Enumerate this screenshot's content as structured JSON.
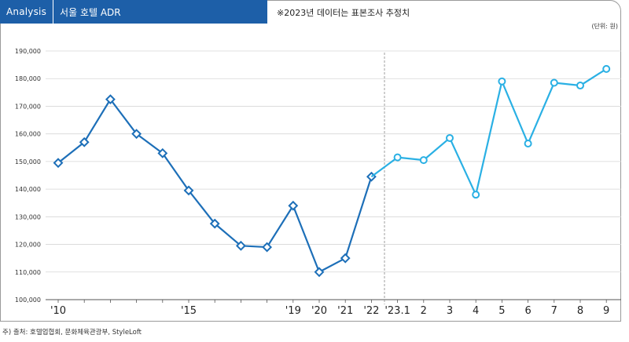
{
  "header": {
    "tag": "Analysis",
    "title": "서울 호텔 ADR",
    "note": "※2023년 데이터는 표본조사 추정치"
  },
  "unit": "(단위: 원)",
  "source": "주) 출처: 호텔업협회, 문화체육관광부, StyleLoft",
  "colors": {
    "header": "#1d5fa8",
    "series_annual": "#1d6fb8",
    "series_monthly": "#2ab0e4",
    "divider": "#888888"
  },
  "chart_data": {
    "type": "line",
    "ylim": [
      100000,
      190000
    ],
    "yticks": [
      "100,000",
      "110,000",
      "120,000",
      "130,000",
      "140,000",
      "150,000",
      "160,000",
      "170,000",
      "180,000",
      "190,000"
    ],
    "x_labels": [
      "'10",
      "",
      "",
      "",
      "",
      "'15",
      "",
      "",
      "",
      "'19",
      "'20",
      "'21",
      "'22",
      "'23.1",
      "2",
      "3",
      "4",
      "5",
      "6",
      "7",
      "8",
      "9"
    ],
    "grid": "horizontal",
    "series": [
      {
        "marker": "diamond",
        "values": [
          149500,
          157000,
          172500,
          160000,
          153000,
          139500,
          127500,
          119500,
          119000,
          134000,
          110000,
          115000,
          144500
        ]
      },
      {
        "marker": "circle",
        "values": [
          144500,
          151500,
          150500,
          158500,
          138000,
          179000,
          156500,
          178500,
          177500,
          183500
        ]
      }
    ]
  }
}
